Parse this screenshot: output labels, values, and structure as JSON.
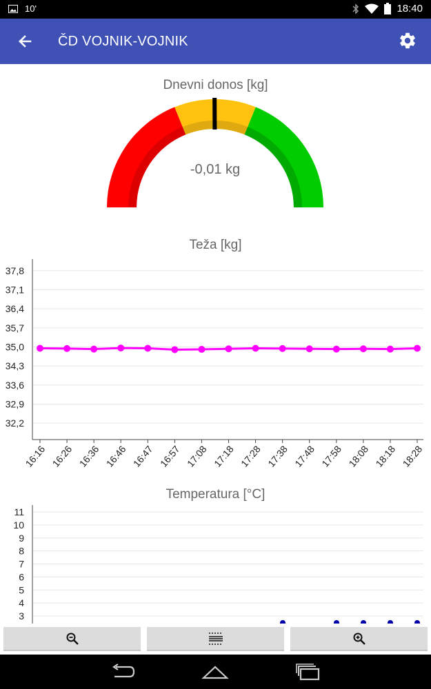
{
  "status_bar": {
    "notification_text": "10'",
    "time": "18:40",
    "icons": [
      "image-icon",
      "bluetooth-icon",
      "wifi-icon",
      "battery-icon"
    ]
  },
  "app_bar": {
    "title": "ČD VOJNIK-VOJNIK",
    "back_icon": "arrow-back-icon",
    "settings_icon": "gear-icon"
  },
  "gauge": {
    "title": "Dnevni donos [kg]",
    "value_text": "-0,01 kg",
    "value": -0.01,
    "colors": {
      "red": "#ff0000",
      "red_dark": "#dd0000",
      "yellow": "#ffc20e",
      "yellow_dark": "#dfaa10",
      "green": "#00cc00",
      "green_dark": "#00aa00",
      "needle": "#000000"
    }
  },
  "chart_data": [
    {
      "type": "line",
      "title": "Teža [kg]",
      "xlabel": "",
      "ylabel": "",
      "x": [
        "16:16",
        "16:26",
        "16:36",
        "16:46",
        "16:47",
        "16:57",
        "17:08",
        "17:18",
        "17:28",
        "17:38",
        "17:48",
        "17:58",
        "18:08",
        "18:18",
        "18:28"
      ],
      "series": [
        {
          "color": "#ff00ff",
          "values": [
            34.95,
            34.94,
            34.92,
            34.96,
            34.95,
            34.9,
            34.91,
            34.93,
            34.95,
            34.94,
            34.93,
            34.92,
            34.93,
            34.92,
            34.95
          ]
        }
      ],
      "yticks": [
        "37,8",
        "37,1",
        "36,4",
        "35,7",
        "35,0",
        "34,3",
        "33,6",
        "32,9",
        "32,2"
      ],
      "ylim": [
        31.9,
        38.1
      ],
      "grid": true
    },
    {
      "type": "scatter",
      "title": "Temperatura [°C]",
      "xlabel": "",
      "ylabel": "",
      "yticks": [
        "11",
        "10",
        "9",
        "8",
        "7",
        "6",
        "5",
        "4",
        "3"
      ],
      "ylim": [
        2.6,
        11.5
      ],
      "series": [
        {
          "color": "#0000aa",
          "points_visible": 5
        }
      ],
      "grid": true
    }
  ],
  "buttons": {
    "zoom_out_icon": "zoom-out-icon",
    "fit_icon": "fit-grid-icon",
    "zoom_in_icon": "zoom-in-icon"
  },
  "nav_bar": {
    "icons": [
      "back-nav-icon",
      "home-nav-icon",
      "recents-nav-icon"
    ]
  }
}
